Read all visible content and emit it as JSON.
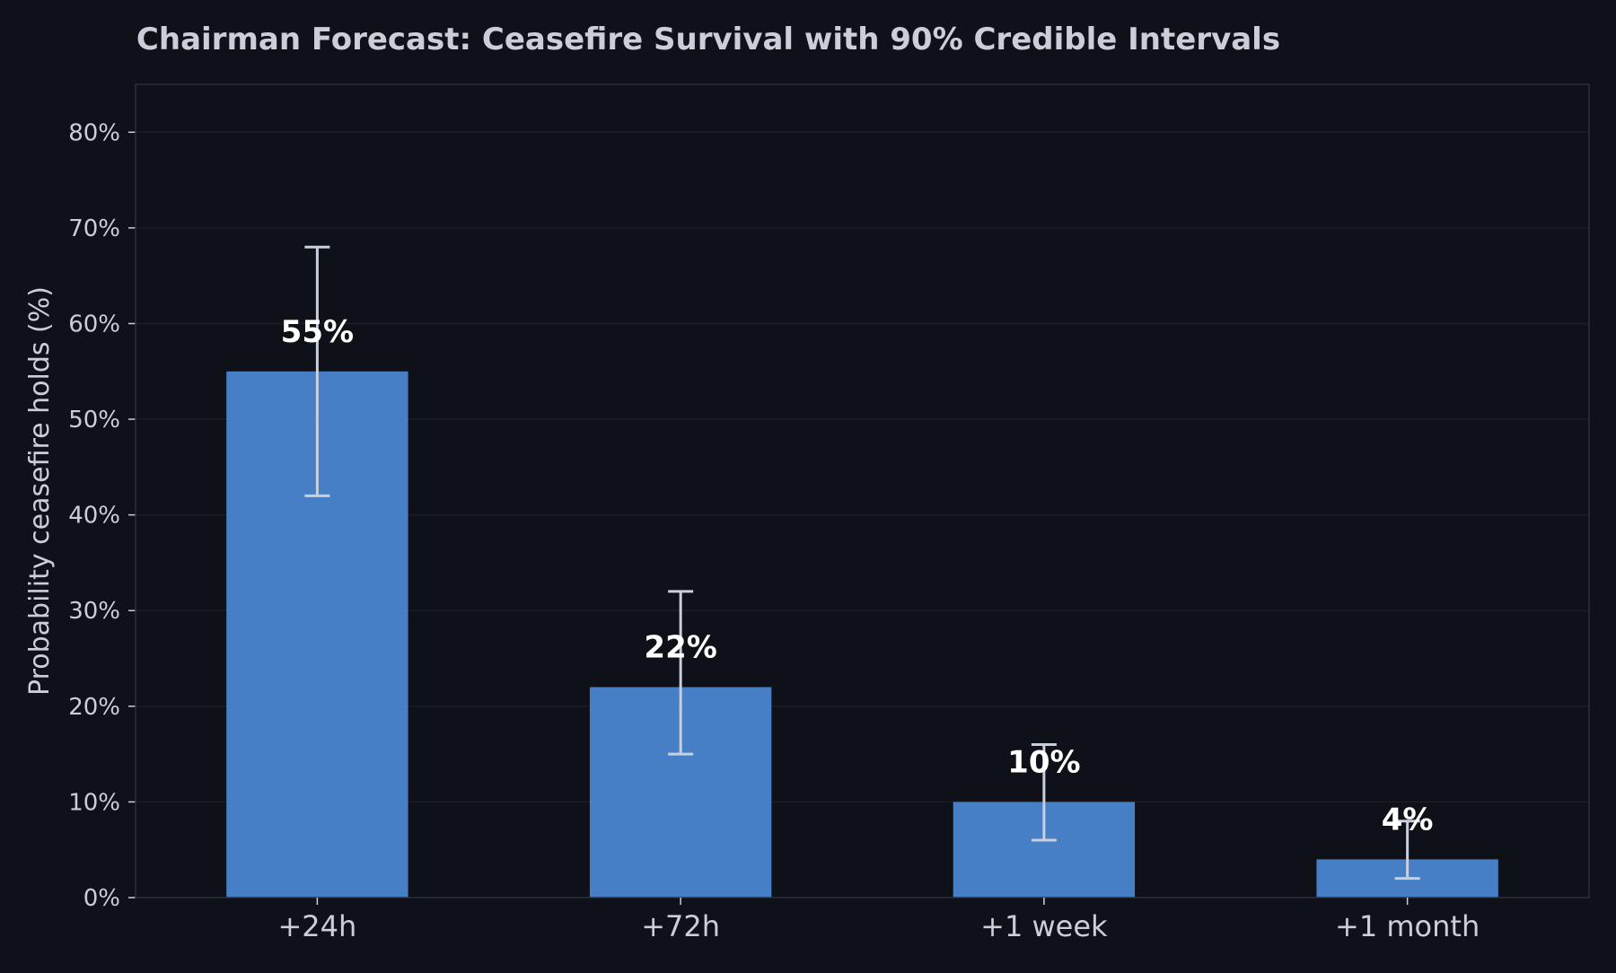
{
  "chart_data": {
    "type": "bar",
    "title": "Chairman Forecast: Ceasefire Survival with 90% Credible Intervals",
    "xlabel": "",
    "ylabel": "Probability ceasefire holds (%)",
    "categories": [
      "+24h",
      "+72h",
      "+1 week",
      "+1 month"
    ],
    "values": [
      55,
      22,
      10,
      4
    ],
    "value_labels": [
      "55%",
      "22%",
      "10%",
      "4%"
    ],
    "error_low": [
      42,
      15,
      6,
      2
    ],
    "error_high": [
      68,
      32,
      16,
      8
    ],
    "ylim": [
      0,
      85
    ],
    "yticks": [
      0,
      10,
      20,
      30,
      40,
      50,
      60,
      70,
      80
    ],
    "ytick_labels": [
      "0%",
      "10%",
      "20%",
      "30%",
      "40%",
      "50%",
      "60%",
      "70%",
      "80%"
    ],
    "grid": true,
    "legend": "none",
    "colors": {
      "background": "#0e1117",
      "bar": "#4a86cf",
      "error_bar": "#c9cfdb",
      "grid": "#1a1e26",
      "spine": "#2a2f38",
      "text": "#c9ced8",
      "value_label": "#ffffff"
    }
  }
}
